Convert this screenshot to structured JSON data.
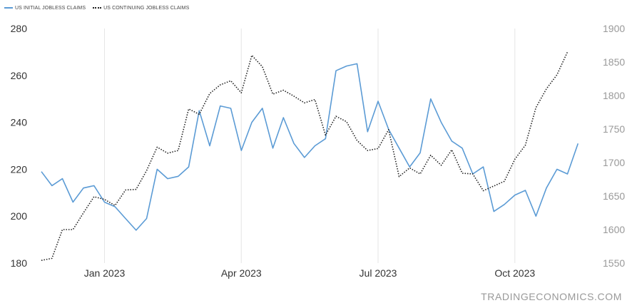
{
  "legend": {
    "initial_label": "US INITIAL JOBLESS CLAIMS",
    "continuing_label": "US CONTINUING JOBLESS CLAIMS"
  },
  "source": "TRADINGECONOMICS.COM",
  "chart_data": {
    "type": "line",
    "x_tick_labels": [
      "Jan 2023",
      "Apr 2023",
      "Jul 2023",
      "Oct 2023"
    ],
    "x_tick_weeks": [
      6,
      19,
      32,
      45
    ],
    "y_left": {
      "range": [
        180,
        280
      ],
      "ticks": [
        180,
        200,
        220,
        240,
        260,
        280
      ]
    },
    "y_right": {
      "range": [
        1550,
        1900
      ],
      "ticks": [
        1550,
        1600,
        1650,
        1700,
        1750,
        1800,
        1850,
        1900
      ]
    },
    "grid": "vertical",
    "legend_position": "top-left",
    "colors": {
      "initial": "#5b9bd5",
      "continuing": "#222222",
      "grid": "#e6e6e6"
    },
    "series": [
      {
        "name": "US INITIAL JOBLESS CLAIMS",
        "axis": "left",
        "style": "solid",
        "values": [
          219,
          213,
          216,
          206,
          212,
          213,
          206,
          204,
          199,
          194,
          199,
          220,
          216,
          217,
          221,
          245,
          230,
          247,
          246,
          228,
          240,
          246,
          229,
          242,
          231,
          225,
          230,
          233,
          262,
          264,
          265,
          236,
          249,
          237,
          229,
          221,
          227,
          250,
          240,
          232,
          229,
          218,
          221,
          202,
          205,
          209,
          211,
          200,
          212,
          220,
          218,
          231
        ]
      },
      {
        "name": "US CONTINUING JOBLESS CLAIMS",
        "axis": "right",
        "style": "dotted",
        "values": [
          1554,
          1557,
          1600,
          1600,
          1625,
          1649,
          1645,
          1636,
          1659,
          1660,
          1688,
          1723,
          1714,
          1718,
          1780,
          1772,
          1803,
          1816,
          1822,
          1804,
          1860,
          1843,
          1802,
          1808,
          1799,
          1789,
          1794,
          1741,
          1769,
          1761,
          1733,
          1718,
          1721,
          1749,
          1679,
          1692,
          1683,
          1711,
          1696,
          1719,
          1684,
          1683,
          1658,
          1665,
          1672,
          1705,
          1726,
          1782,
          1810,
          1831,
          1865
        ]
      }
    ]
  }
}
